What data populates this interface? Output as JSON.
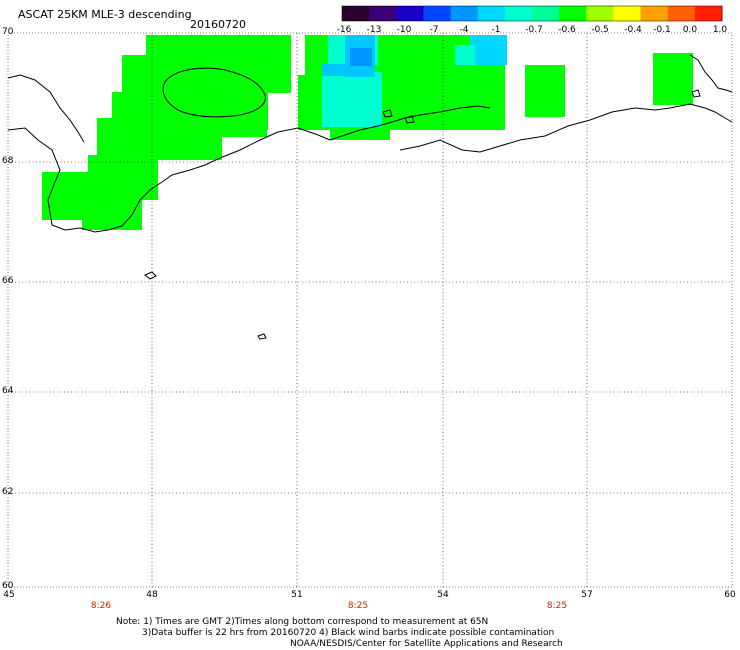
{
  "header": {
    "title": "ASCAT 25KM MLE-3 descending",
    "date": "20160720"
  },
  "colorbar": {
    "labels": [
      "-16",
      "-13",
      "-10",
      "-7",
      "-4",
      "-1",
      "-0.7",
      "-0.6",
      "-0.5",
      "-0.4",
      "-0.1",
      "0.0",
      "1.0"
    ],
    "colors": [
      "#2b0030",
      "#3a0078",
      "#1a00c8",
      "#0046ff",
      "#0096ff",
      "#00d8ff",
      "#00ffd0",
      "#00ff96",
      "#00ff00",
      "#a0ff00",
      "#ffff00",
      "#ffa000",
      "#ff6000",
      "#ff1e00"
    ]
  },
  "axes": {
    "lat_labels": [
      "70",
      "68",
      "66",
      "64",
      "62",
      "60"
    ],
    "lon_labels": [
      "45",
      "48",
      "51",
      "54",
      "57",
      "60"
    ]
  },
  "times": [
    "8:26",
    "8:25",
    "8:25"
  ],
  "notes": {
    "line1": "Note:  1) Times are GMT  2)Times along bottom correspond to measurement at 65N",
    "line2": "3)Data buffer is 22 hrs from 20160720  4) Black wind barbs indicate possible contamination",
    "line3": "NOAA/NESDIS/Center for Satellite Applications and Research"
  },
  "map_colors": {
    "green": "#00ff00",
    "cyan": "#00ffd0",
    "lightblue": "#00c8ff",
    "blue": "#0096ff"
  }
}
